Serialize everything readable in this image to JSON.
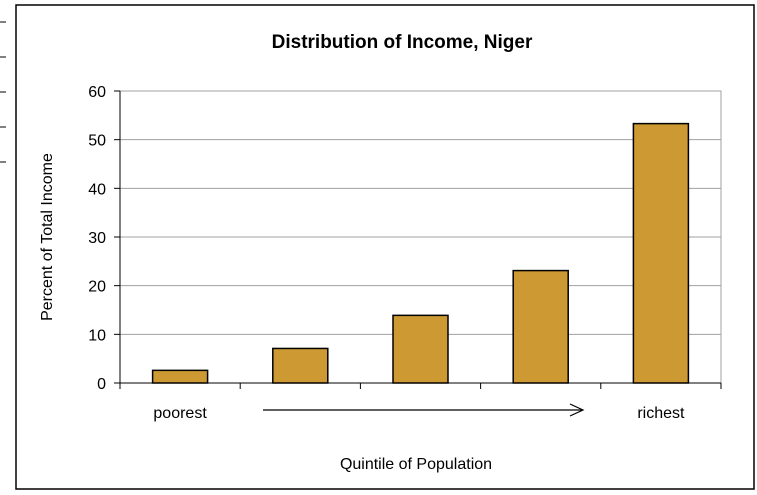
{
  "chart_data": {
    "type": "bar",
    "title": "Distribution of Income, Niger",
    "ylabel": "Percent of Total Income",
    "xlabel": "Quintile of Population",
    "categories": [
      "poorest",
      "",
      "",
      "",
      "richest"
    ],
    "values": [
      2.6,
      7.1,
      13.9,
      23.1,
      53.3
    ],
    "ylim": [
      0,
      60
    ],
    "yticks": [
      "0",
      "10",
      "20",
      "30",
      "40",
      "50",
      "60"
    ],
    "grid": true,
    "legend": "none",
    "bar_color": "#CC9933",
    "annotation": "arrow from poorest to richest"
  }
}
